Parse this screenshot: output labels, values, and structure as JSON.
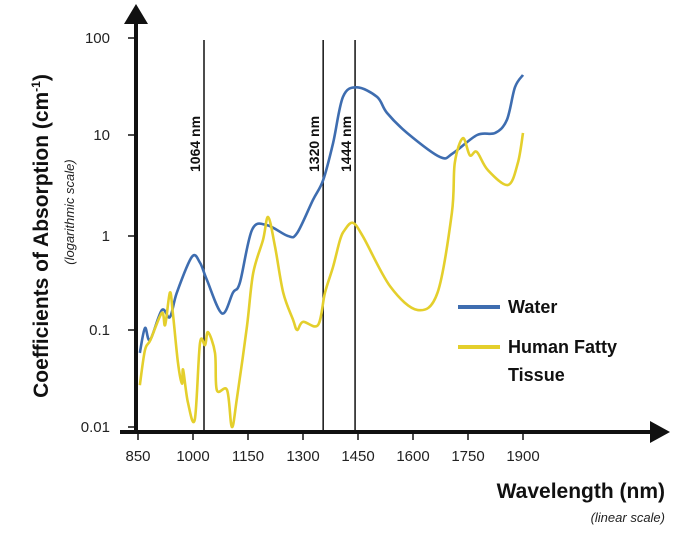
{
  "chart_data": {
    "type": "line",
    "xlabel": "Wavelength (nm)",
    "xlabel_note": "(linear scale)",
    "ylabel": "Coefficients of Absorption (cm",
    "ylabel_sup": "-1",
    "ylabel_close": ")",
    "ylabel_note": "(logarithmic scale)",
    "xlim": [
      850,
      1900
    ],
    "ylim": [
      0.01,
      100
    ],
    "yscale": "log",
    "grid": false,
    "legend_position": "right",
    "x_ticks": [
      "850",
      "1000",
      "1150",
      "1300",
      "1450",
      "1600",
      "1750",
      "1900"
    ],
    "y_ticks": [
      "100",
      "10",
      "1",
      "0.1",
      "0.01"
    ],
    "reference_lines": [
      {
        "label": "1064 nm",
        "x": 1030
      },
      {
        "label": "1320 nm",
        "x": 1355
      },
      {
        "label": "1444 nm",
        "x": 1442
      }
    ],
    "series": [
      {
        "name": "Water",
        "color": "#3e6db0",
        "x": [
          855,
          869,
          883,
          915,
          937,
          956,
          997,
          1019,
          1038,
          1079,
          1109,
          1128,
          1161,
          1202,
          1259,
          1284,
          1327,
          1355,
          1382,
          1409,
          1447,
          1502,
          1529,
          1584,
          1674,
          1709,
          1775,
          1824,
          1856,
          1878,
          1900
        ],
        "y": [
          0.058,
          0.105,
          0.079,
          0.163,
          0.137,
          0.25,
          0.6,
          0.52,
          0.34,
          0.15,
          0.25,
          0.32,
          1.15,
          1.28,
          1.0,
          1.07,
          2.27,
          3.58,
          8.3,
          24.7,
          31,
          24.7,
          16.9,
          10.5,
          6.05,
          6.6,
          10,
          10.5,
          14.3,
          31,
          41.6
        ]
      },
      {
        "name": "Human Fatty Tissue",
        "color": "#e4cf2c",
        "x": [
          855,
          869,
          884,
          915,
          924,
          937,
          945,
          959,
          970,
          973,
          986,
          1005,
          1019,
          1033,
          1041,
          1060,
          1065,
          1093,
          1106,
          1120,
          1147,
          1164,
          1191,
          1205,
          1224,
          1246,
          1273,
          1284,
          1300,
          1341,
          1360,
          1382,
          1401,
          1414,
          1436,
          1464,
          1538,
          1613,
          1667,
          1706,
          1714,
          1736,
          1755,
          1774,
          1804,
          1859,
          1886,
          1900
        ],
        "y": [
          0.027,
          0.062,
          0.079,
          0.152,
          0.113,
          0.25,
          0.152,
          0.046,
          0.028,
          0.039,
          0.018,
          0.012,
          0.073,
          0.07,
          0.095,
          0.058,
          0.024,
          0.024,
          0.01,
          0.02,
          0.108,
          0.4,
          0.91,
          1.54,
          0.76,
          0.25,
          0.128,
          0.1,
          0.122,
          0.113,
          0.25,
          0.47,
          0.91,
          1.15,
          1.35,
          0.98,
          0.29,
          0.163,
          0.25,
          1.69,
          5.3,
          9.3,
          6.3,
          6.8,
          4.5,
          3.2,
          5.3,
          10.5
        ]
      }
    ],
    "legend": [
      {
        "line1": "Water",
        "line2": ""
      },
      {
        "line1": "Human Fatty",
        "line2": "Tissue"
      }
    ]
  }
}
